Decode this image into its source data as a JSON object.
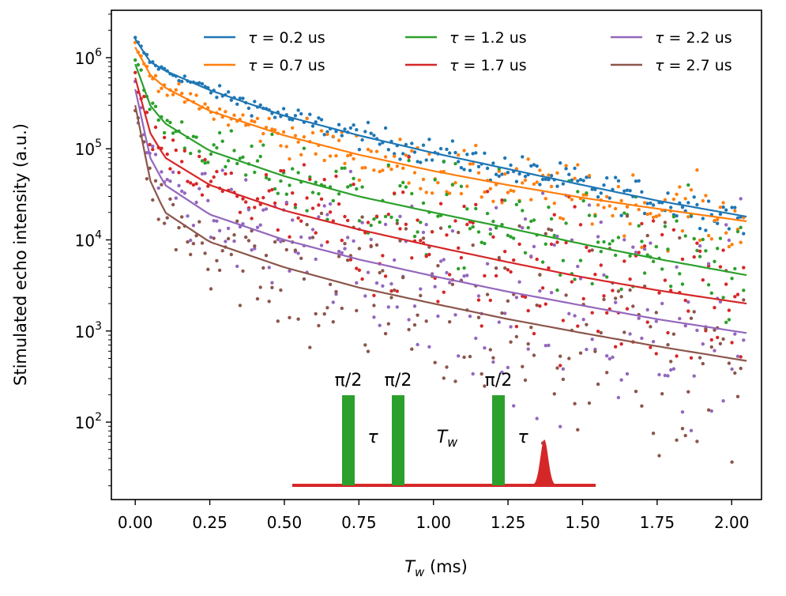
{
  "chart_data": {
    "type": "scatter",
    "title": "",
    "xlabel": {
      "symbol": "T",
      "subscript": "w",
      "unit": " (ms)"
    },
    "ylabel": "Stimulated echo intensity (a.u.)",
    "yscale": "log",
    "xlim": [
      -0.08,
      2.1
    ],
    "ylim_log10": [
      1.15,
      6.52
    ],
    "x_ticks": [
      0.0,
      0.25,
      0.5,
      0.75,
      1.0,
      1.25,
      1.5,
      1.75,
      2.0
    ],
    "x_tick_labels": [
      "0.00",
      "0.25",
      "0.50",
      "0.75",
      "1.00",
      "1.25",
      "1.50",
      "1.75",
      "2.00"
    ],
    "y_ticks_log10": [
      2,
      3,
      4,
      5,
      6
    ],
    "y_tick_labels": [
      {
        "base": "10",
        "exp": "2"
      },
      {
        "base": "10",
        "exp": "3"
      },
      {
        "base": "10",
        "exp": "4"
      },
      {
        "base": "10",
        "exp": "5"
      },
      {
        "base": "10",
        "exp": "6"
      }
    ],
    "legend_location": "top-right",
    "series": [
      {
        "name": "τ = 0.2 us",
        "color": "#1f77b4",
        "fit": [
          [
            0.0,
            1600000
          ],
          [
            0.05,
            900000
          ],
          [
            0.1,
            720000
          ],
          [
            0.25,
            440000
          ],
          [
            0.5,
            230000
          ],
          [
            0.75,
            140000
          ],
          [
            1.0,
            90000
          ],
          [
            1.25,
            60000
          ],
          [
            1.5,
            40000
          ],
          [
            1.75,
            27000
          ],
          [
            2.05,
            18000
          ]
        ]
      },
      {
        "name": "τ = 0.7 us",
        "color": "#ff7f0e",
        "fit": [
          [
            0.0,
            1300000
          ],
          [
            0.05,
            650000
          ],
          [
            0.1,
            470000
          ],
          [
            0.25,
            260000
          ],
          [
            0.5,
            140000
          ],
          [
            0.75,
            86000
          ],
          [
            1.0,
            57000
          ],
          [
            1.25,
            40000
          ],
          [
            1.5,
            29000
          ],
          [
            1.75,
            22000
          ],
          [
            2.05,
            16000
          ]
        ]
      },
      {
        "name": "τ = 1.2 us",
        "color": "#2ca02c",
        "fit": [
          [
            0.0,
            850000
          ],
          [
            0.05,
            300000
          ],
          [
            0.1,
            190000
          ],
          [
            0.25,
            95000
          ],
          [
            0.5,
            50000
          ],
          [
            0.75,
            30000
          ],
          [
            1.0,
            20000
          ],
          [
            1.25,
            13500
          ],
          [
            1.5,
            9000
          ],
          [
            1.75,
            6200
          ],
          [
            2.05,
            4100
          ]
        ]
      },
      {
        "name": "τ = 1.7 us",
        "color": "#d62728",
        "fit": [
          [
            0.0,
            600000
          ],
          [
            0.05,
            150000
          ],
          [
            0.1,
            80000
          ],
          [
            0.25,
            40000
          ],
          [
            0.5,
            21000
          ],
          [
            0.75,
            13000
          ],
          [
            1.0,
            8500
          ],
          [
            1.25,
            5700
          ],
          [
            1.5,
            3900
          ],
          [
            1.75,
            2800
          ],
          [
            2.05,
            2000
          ]
        ]
      },
      {
        "name": "τ = 2.2 us",
        "color": "#9467bd",
        "fit": [
          [
            0.0,
            450000
          ],
          [
            0.05,
            80000
          ],
          [
            0.1,
            40000
          ],
          [
            0.25,
            19000
          ],
          [
            0.5,
            10000
          ],
          [
            0.75,
            6100
          ],
          [
            1.0,
            4000
          ],
          [
            1.25,
            2700
          ],
          [
            1.5,
            1900
          ],
          [
            1.75,
            1350
          ],
          [
            2.05,
            950
          ]
        ]
      },
      {
        "name": "τ = 2.7 us",
        "color": "#8c564b",
        "fit": [
          [
            0.0,
            300000
          ],
          [
            0.05,
            45000
          ],
          [
            0.1,
            20000
          ],
          [
            0.25,
            9500
          ],
          [
            0.5,
            5000
          ],
          [
            0.75,
            3000
          ],
          [
            1.0,
            2000
          ],
          [
            1.25,
            1350
          ],
          [
            1.5,
            950
          ],
          [
            1.75,
            680
          ],
          [
            2.05,
            470
          ]
        ]
      }
    ],
    "pulse_sequence": {
      "pulse_label": "π/2",
      "delay_symbol": "τ",
      "wait_symbol": "T",
      "wait_subscript": "w",
      "pulse_color": "#2ca02c",
      "echo_color": "#d62728"
    }
  }
}
